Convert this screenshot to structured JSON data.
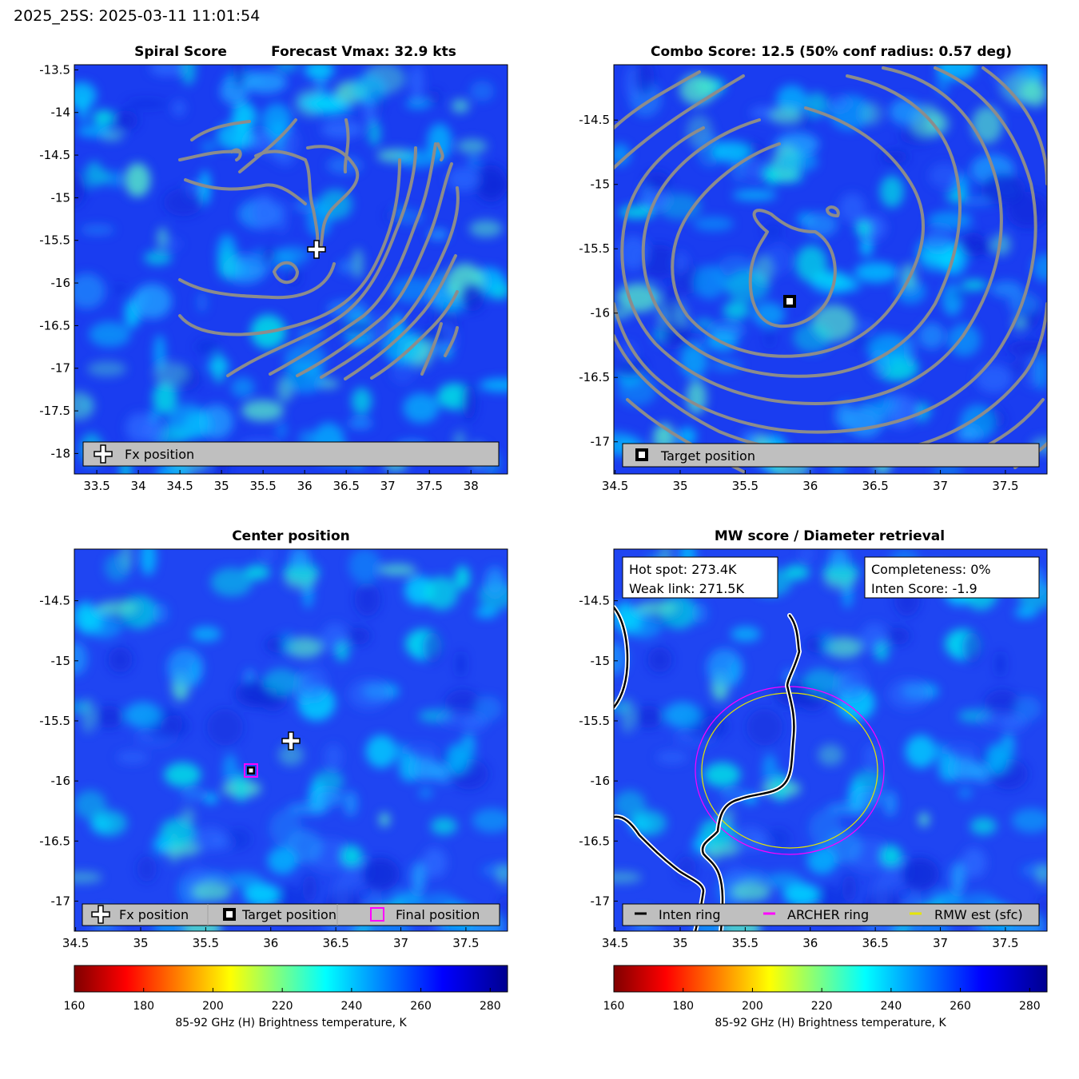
{
  "header": {
    "title": "2025_25S: 2025-03-11 11:01:54"
  },
  "colors": {
    "contour": "#8c8c8c",
    "legend_bg": "#bfbfbf",
    "archer_ring": "#ff00ff",
    "rmw_ring": "#e6e600",
    "inten_ring": "#000000",
    "final_marker": "#ff00ff"
  },
  "colormap": {
    "name": "jet-reversed",
    "stops": [
      "#800000",
      "#ff0000",
      "#ffff00",
      "#00ffff",
      "#0000ff",
      "#00008f"
    ]
  },
  "panels": {
    "spiral": {
      "title_left": "Spiral Score",
      "title_right": "Forecast Vmax: 32.9 kts",
      "legend": {
        "fx": "Fx position"
      },
      "fx_icon": "plus-icon"
    },
    "combo": {
      "title": "Combo Score: 12.5  (50% conf radius: 0.57 deg)",
      "legend": {
        "target": "Target position"
      },
      "target_icon": "square-marker-icon"
    },
    "center": {
      "title": "Center position",
      "legend": {
        "fx": "Fx position",
        "target": "Target position",
        "final": "Final position"
      }
    },
    "mw": {
      "title": "MW score / Diameter retrieval",
      "info_left": [
        "Hot spot: 273.4K",
        "Weak link: 271.5K"
      ],
      "info_right": [
        "Completeness: 0%",
        "Inten Score: -1.9"
      ],
      "legend": {
        "inten": "Inten ring",
        "archer": "ARCHER ring",
        "rmw": "RMW est (sfc)"
      }
    }
  },
  "chart_data": [
    {
      "type": "heatmap",
      "panel": "spiral",
      "title": "Spiral Score",
      "x_ticks": [
        "33.5",
        "34",
        "34.5",
        "35",
        "35.5",
        "36",
        "36.5",
        "37",
        "37.5",
        "38"
      ],
      "x_tick_values": [
        33.5,
        34,
        34.5,
        35,
        35.5,
        36,
        36.5,
        37,
        37.5,
        38
      ],
      "y_ticks": [
        "-13.5",
        "-14",
        "-14.5",
        "-15",
        "-15.5",
        "-16",
        "-16.5",
        "-17",
        "-17.5",
        "-18"
      ],
      "y_tick_values": [
        -13.5,
        -14,
        -14.5,
        -15,
        -15.5,
        -16,
        -16.5,
        -17,
        -17.5,
        -18
      ],
      "xlim": [
        33.23,
        38.44
      ],
      "ylim": [
        -18.24,
        -13.44
      ],
      "markers": [
        {
          "label": "Fx position",
          "lon": 36.14,
          "lat": -15.66
        }
      ]
    },
    {
      "type": "heatmap",
      "panel": "combo",
      "title": "Combo Score: 12.5  (50% conf radius: 0.57 deg)",
      "x_ticks": [
        "34.5",
        "35",
        "35.5",
        "36",
        "36.5",
        "37",
        "37.5"
      ],
      "x_tick_values": [
        34.5,
        35,
        35.5,
        36,
        36.5,
        37,
        37.5
      ],
      "y_ticks": [
        "-14.5",
        "-15",
        "-15.5",
        "-16",
        "-16.5",
        "-17"
      ],
      "y_tick_values": [
        -14.5,
        -15,
        -15.5,
        -16,
        -16.5,
        -17
      ],
      "xlim": [
        34.49,
        37.82
      ],
      "ylim": [
        -17.25,
        -14.07
      ],
      "markers": [
        {
          "label": "Target position",
          "lon": 35.84,
          "lat": -15.9
        }
      ]
    },
    {
      "type": "heatmap",
      "panel": "center",
      "title": "Center position",
      "x_ticks": [
        "34.5",
        "35",
        "35.5",
        "36",
        "36.5",
        "37",
        "37.5"
      ],
      "x_tick_values": [
        34.5,
        35,
        35.5,
        36,
        36.5,
        37,
        37.5
      ],
      "y_ticks": [
        "-14.5",
        "-15",
        "-15.5",
        "-16",
        "-16.5",
        "-17"
      ],
      "y_tick_values": [
        -14.5,
        -15,
        -15.5,
        -16,
        -16.5,
        -17
      ],
      "xlim": [
        34.49,
        37.82
      ],
      "ylim": [
        -17.25,
        -14.07
      ],
      "markers": [
        {
          "label": "Fx position",
          "lon": 36.14,
          "lat": -15.66
        },
        {
          "label": "Target position",
          "lon": 35.84,
          "lat": -15.91
        },
        {
          "label": "Final position",
          "lon": 35.84,
          "lat": -15.91
        }
      ]
    },
    {
      "type": "heatmap",
      "panel": "mw",
      "title": "MW score / Diameter retrieval",
      "x_ticks": [
        "34.5",
        "35",
        "35.5",
        "36",
        "36.5",
        "37",
        "37.5"
      ],
      "x_tick_values": [
        34.5,
        35,
        35.5,
        36,
        36.5,
        37,
        37.5
      ],
      "y_ticks": [
        "-14.5",
        "-15",
        "-15.5",
        "-16",
        "-16.5",
        "-17"
      ],
      "y_tick_values": [
        -14.5,
        -15,
        -15.5,
        -16,
        -16.5,
        -17
      ],
      "xlim": [
        34.49,
        37.82
      ],
      "ylim": [
        -17.25,
        -14.07
      ],
      "rings": [
        {
          "label": "ARCHER ring",
          "lon": 35.84,
          "lat": -15.91,
          "rx_deg": 0.71,
          "ry_deg": 0.71
        },
        {
          "label": "RMW est (sfc)",
          "lon": 35.84,
          "lat": -15.91,
          "rx_deg": 0.66,
          "ry_deg": 0.65
        }
      ]
    },
    {
      "type": "colorbar",
      "label": "85-92 GHz (H) Brightness temperature, K",
      "ticks": [
        "160",
        "180",
        "200",
        "220",
        "240",
        "260",
        "280"
      ],
      "tick_values": [
        160,
        180,
        200,
        220,
        240,
        260,
        280
      ],
      "range": [
        160,
        285
      ]
    },
    {
      "type": "colorbar",
      "label": "85-92 GHz (H) Brightness temperature, K",
      "ticks": [
        "160",
        "180",
        "200",
        "220",
        "240",
        "260",
        "280"
      ],
      "tick_values": [
        160,
        180,
        200,
        220,
        240,
        260,
        280
      ],
      "range": [
        160,
        285
      ]
    }
  ]
}
